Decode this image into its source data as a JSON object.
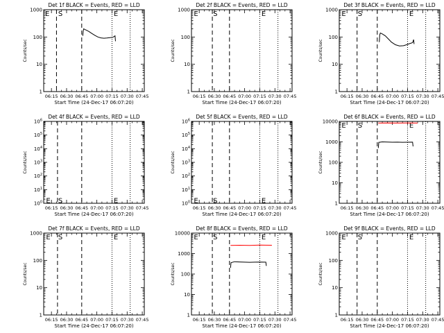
{
  "layout_title": "",
  "common": {
    "ylabel": "Counts/sec",
    "xlabel": "Start Time (24-Dec-17 06:07:20)",
    "x_ticks": [
      "06:15",
      "06:30",
      "06:45",
      "07:00",
      "07:15",
      "07:30",
      "07:45"
    ],
    "marker_S": "S",
    "marker_E": "E",
    "event_color": "#000000",
    "lld_color": "#ff0000"
  },
  "chart_data": [
    {
      "type": "line",
      "title": "Det 1f BLACK = Events, RED = LLD",
      "yscale": "log",
      "ylim": [
        1,
        1000
      ],
      "y_ticks": [
        {
          "v": 1,
          "label": "1"
        },
        {
          "v": 10,
          "label": "10"
        },
        {
          "v": 100,
          "label": "100"
        },
        {
          "v": 1000,
          "label": "1000"
        }
      ],
      "xlim": [
        "06:07:20",
        "07:47:00"
      ],
      "markers": {
        "dashed": [
          "06:20:00",
          "06:45:00"
        ],
        "dotted": [
          "07:15:00",
          "07:33:00"
        ],
        "S_time": "06:21:00",
        "E_left_time": "06:08:00",
        "E_right_time": "07:16:00",
        "S_y": 1000,
        "E_left_y": 1000,
        "E_right_y": 1000
      },
      "series": [
        {
          "name": "Events",
          "color": "#000000",
          "points": [
            [
              "06:46:00",
              110
            ],
            [
              "06:46:30",
              170
            ],
            [
              "06:47:00",
              200
            ],
            [
              "06:48:00",
              190
            ],
            [
              "06:50:00",
              175
            ],
            [
              "06:52:00",
              160
            ],
            [
              "06:55:00",
              135
            ],
            [
              "06:58:00",
              115
            ],
            [
              "07:01:00",
              100
            ],
            [
              "07:04:00",
              93
            ],
            [
              "07:07:00",
              90
            ],
            [
              "07:10:00",
              92
            ],
            [
              "07:13:00",
              95
            ],
            [
              "07:16:00",
              98
            ],
            [
              "07:18:00",
              110
            ],
            [
              "07:18:30",
              70
            ]
          ]
        }
      ]
    },
    {
      "type": "line",
      "title": "Det 2f BLACK = Events, RED = LLD",
      "yscale": "log",
      "ylim": [
        1,
        1000
      ],
      "y_ticks": [
        {
          "v": 1,
          "label": "1"
        },
        {
          "v": 10,
          "label": "10"
        },
        {
          "v": 100,
          "label": "100"
        },
        {
          "v": 1000,
          "label": "1000"
        }
      ],
      "xlim": [
        "06:07:20",
        "07:47:00"
      ],
      "markers": {
        "dashed": [
          "06:28:00",
          "06:45:00"
        ],
        "dotted": [
          "07:15:00",
          "07:33:00"
        ],
        "S_time": "06:28:00",
        "E_left_time": "06:09:00",
        "E_right_time": "07:16:00",
        "S_y": 1000,
        "E_left_y": 1000,
        "E_right_y": 1000
      },
      "series": []
    },
    {
      "type": "line",
      "title": "Det 3f BLACK = Events, RED = LLD",
      "yscale": "log",
      "ylim": [
        1,
        1000
      ],
      "y_ticks": [
        {
          "v": 1,
          "label": "1"
        },
        {
          "v": 10,
          "label": "10"
        },
        {
          "v": 100,
          "label": "100"
        },
        {
          "v": 1000,
          "label": "1000"
        }
      ],
      "xlim": [
        "06:07:20",
        "07:47:00"
      ],
      "markers": {
        "dashed": [
          "06:25:00",
          "06:45:00"
        ],
        "dotted": [
          "07:15:00",
          "07:33:00"
        ],
        "S_time": "06:25:00",
        "E_left_time": "06:09:00",
        "E_right_time": "07:16:00",
        "S_y": 1000,
        "E_left_y": 1000,
        "E_right_y": 1000
      },
      "series": [
        {
          "name": "Events",
          "color": "#000000",
          "points": [
            [
              "06:47:00",
              65
            ],
            [
              "06:47:30",
              120
            ],
            [
              "06:48:00",
              140
            ],
            [
              "06:50:00",
              130
            ],
            [
              "06:53:00",
              110
            ],
            [
              "06:56:00",
              85
            ],
            [
              "06:59:00",
              65
            ],
            [
              "07:03:00",
              52
            ],
            [
              "07:07:00",
              47
            ],
            [
              "07:11:00",
              48
            ],
            [
              "07:14:00",
              52
            ],
            [
              "07:17:00",
              57
            ],
            [
              "07:20:00",
              62
            ],
            [
              "07:21:00",
              80
            ],
            [
              "07:21:30",
              55
            ]
          ]
        }
      ]
    },
    {
      "type": "line",
      "title": "Det 4f BLACK = Events, RED = LLD",
      "yscale": "log",
      "ylim": [
        1,
        1000000
      ],
      "y_ticks": [
        {
          "v": 1,
          "label": "10^0"
        },
        {
          "v": 10,
          "label": "10^1"
        },
        {
          "v": 100,
          "label": "10^2"
        },
        {
          "v": 1000,
          "label": "10^3"
        },
        {
          "v": 10000,
          "label": "10^4"
        },
        {
          "v": 100000,
          "label": "10^5"
        },
        {
          "v": 1000000,
          "label": "10^6"
        }
      ],
      "xlim": [
        "06:07:20",
        "07:47:00"
      ],
      "markers": {
        "dashed": [
          "06:21:00",
          "06:45:00"
        ],
        "dotted": [
          "07:15:00",
          "07:33:00"
        ],
        "S_time": "06:21:00",
        "E_left_time": "06:09:00",
        "E_right_time": "07:16:00",
        "S_y": 3,
        "E_left_y": 3,
        "E_right_y": 3
      },
      "series": []
    },
    {
      "type": "line",
      "title": "Det 5f BLACK = Events, RED = LLD",
      "yscale": "log",
      "ylim": [
        1,
        1000000
      ],
      "y_ticks": [
        {
          "v": 1,
          "label": "10^0"
        },
        {
          "v": 10,
          "label": "10^1"
        },
        {
          "v": 100,
          "label": "10^2"
        },
        {
          "v": 1000,
          "label": "10^3"
        },
        {
          "v": 10000,
          "label": "10^4"
        },
        {
          "v": 100000,
          "label": "10^5"
        },
        {
          "v": 1000000,
          "label": "10^6"
        }
      ],
      "xlim": [
        "06:07:20",
        "07:47:00"
      ],
      "markers": {
        "dashed": [
          "06:28:00",
          "06:45:00"
        ],
        "dotted": [
          "07:15:00",
          "07:33:00"
        ],
        "S_time": "06:28:00",
        "E_left_time": "06:09:00",
        "E_right_time": "07:16:00",
        "S_y": 3,
        "E_left_y": 3,
        "E_right_y": 3
      },
      "series": []
    },
    {
      "type": "line",
      "title": "Det 6f BLACK = Events, RED = LLD",
      "yscale": "log",
      "ylim": [
        1,
        10000
      ],
      "y_ticks": [
        {
          "v": 1,
          "label": "1"
        },
        {
          "v": 10,
          "label": "10"
        },
        {
          "v": 100,
          "label": "100"
        },
        {
          "v": 1000,
          "label": "1000"
        },
        {
          "v": 10000,
          "label": "10000"
        }
      ],
      "xlim": [
        "06:07:20",
        "07:47:00"
      ],
      "markers": {
        "dashed": [
          "06:25:00",
          "06:45:00"
        ],
        "dotted": [
          "07:15:00",
          "07:33:00"
        ],
        "S_time": "06:25:00",
        "E_left_time": "06:09:00",
        "E_right_time": "07:16:00",
        "S_y": 10000,
        "E_left_y": 10000,
        "E_right_y": 10000
      },
      "series": [
        {
          "name": "LLD",
          "color": "#ff0000",
          "points": [
            [
              "06:46:00",
              8300
            ],
            [
              "06:55:00",
              8400
            ],
            [
              "07:05:00",
              8300
            ],
            [
              "07:15:00",
              8350
            ],
            [
              "07:25:00",
              8300
            ]
          ]
        },
        {
          "name": "Events",
          "color": "#000000",
          "points": [
            [
              "06:46:00",
              500
            ],
            [
              "06:46:30",
              950
            ],
            [
              "06:50:00",
              1000
            ],
            [
              "06:55:00",
              980
            ],
            [
              "07:00:00",
              960
            ],
            [
              "07:05:00",
              970
            ],
            [
              "07:10:00",
              955
            ],
            [
              "07:15:00",
              960
            ],
            [
              "07:20:00",
              970
            ],
            [
              "07:20:30",
              600
            ]
          ]
        }
      ]
    },
    {
      "type": "line",
      "title": "Det 7f BLACK = Events, RED = LLD",
      "yscale": "log",
      "ylim": [
        1,
        1000
      ],
      "y_ticks": [
        {
          "v": 1,
          "label": "1"
        },
        {
          "v": 10,
          "label": "10"
        },
        {
          "v": 100,
          "label": "100"
        },
        {
          "v": 1000,
          "label": "1000"
        }
      ],
      "xlim": [
        "06:07:20",
        "07:47:00"
      ],
      "markers": {
        "dashed": [
          "06:21:00",
          "06:45:00"
        ],
        "dotted": [
          "07:15:00",
          "07:33:00"
        ],
        "S_time": "06:21:00",
        "E_left_time": "06:09:00",
        "E_right_time": "07:16:00",
        "S_y": 1000,
        "E_left_y": 1000,
        "E_right_y": 1000
      },
      "series": []
    },
    {
      "type": "line",
      "title": "Det 8f BLACK = Events, RED = LLD",
      "yscale": "log",
      "ylim": [
        1,
        10000
      ],
      "y_ticks": [
        {
          "v": 1,
          "label": "1"
        },
        {
          "v": 10,
          "label": "10"
        },
        {
          "v": 100,
          "label": "100"
        },
        {
          "v": 1000,
          "label": "1000"
        },
        {
          "v": 10000,
          "label": "10000"
        }
      ],
      "xlim": [
        "06:07:20",
        "07:47:00"
      ],
      "markers": {
        "dashed": [
          "06:28:00",
          "06:45:00"
        ],
        "dotted": [
          "07:15:00",
          "07:33:00"
        ],
        "S_time": "06:28:00",
        "E_left_time": "06:09:00",
        "E_right_time": "07:16:00",
        "S_y": 10000,
        "E_left_y": 10000,
        "E_right_y": 10000
      },
      "series": [
        {
          "name": "LLD",
          "color": "#ff0000",
          "points": [
            [
              "06:46:00",
              2500
            ],
            [
              "06:55:00",
              2550
            ],
            [
              "07:05:00",
              2500
            ],
            [
              "07:15:00",
              2600
            ],
            [
              "07:27:00",
              2550
            ]
          ]
        },
        {
          "name": "Events",
          "color": "#000000",
          "points": [
            [
              "06:46:00",
              200
            ],
            [
              "06:46:30",
              360
            ],
            [
              "06:50:00",
              400
            ],
            [
              "06:55:00",
              390
            ],
            [
              "07:00:00",
              380
            ],
            [
              "07:05:00",
              375
            ],
            [
              "07:10:00",
              380
            ],
            [
              "07:15:00",
              385
            ],
            [
              "07:20:00",
              380
            ],
            [
              "07:21:00",
              380
            ],
            [
              "07:21:30",
              250
            ]
          ]
        }
      ]
    },
    {
      "type": "line",
      "title": "Det 9f BLACK = Events, RED = LLD",
      "yscale": "log",
      "ylim": [
        1,
        1000
      ],
      "y_ticks": [
        {
          "v": 1,
          "label": "1"
        },
        {
          "v": 10,
          "label": "10"
        },
        {
          "v": 100,
          "label": "100"
        },
        {
          "v": 1000,
          "label": "1000"
        }
      ],
      "xlim": [
        "06:07:20",
        "07:47:00"
      ],
      "markers": {
        "dashed": [
          "06:25:00",
          "06:45:00"
        ],
        "dotted": [
          "07:15:00",
          "07:33:00"
        ],
        "S_time": "06:25:00",
        "E_left_time": "06:09:00",
        "E_right_time": "07:16:00",
        "S_y": 1000,
        "E_left_y": 1000,
        "E_right_y": 1000
      },
      "series": []
    }
  ]
}
